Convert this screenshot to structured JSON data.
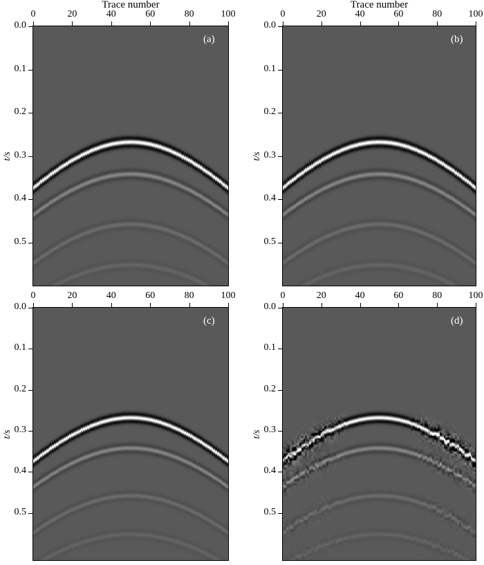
{
  "figure": {
    "background_color": "#ffffff",
    "plot_background_color": "#595959",
    "axis_color": "#000000",
    "panel_label_color": "#ffffff"
  },
  "chart_data": {
    "type": "heatmap",
    "layout": "2x2 grid of grayscale seismic image panels",
    "apex_trace": 50,
    "wavelet_peak_frequency_hz": 42,
    "colormap": {
      "zero_amplitude": "#595959",
      "positive_peak": "#ffffff",
      "negative_trough": "#000000"
    },
    "events": [
      {
        "t0_s": 0.268,
        "moveout_s_at_50_traces": 0.26,
        "amplitude": 1.0
      },
      {
        "t0_s": 0.342,
        "moveout_s_at_50_traces": 0.27,
        "amplitude": 0.27
      },
      {
        "t0_s": 0.458,
        "moveout_s_at_50_traces": 0.3,
        "amplitude": 0.11
      },
      {
        "t0_s": 0.552,
        "moveout_s_at_50_traces": 0.3,
        "amplitude": 0.065
      }
    ],
    "panels": [
      {
        "label": "(a)",
        "xlabel": "Trace number",
        "ylabel": "t/s",
        "x_range": [
          0,
          100
        ],
        "y_max": 0.6,
        "x_tick_values": [
          0,
          20,
          40,
          60,
          80,
          100
        ],
        "x_tick_labels": [
          "0",
          "20",
          "40",
          "60",
          "80",
          "100"
        ],
        "y_tick_values": [
          0,
          0.1,
          0.2,
          0.3,
          0.4,
          0.5
        ],
        "y_tick_labels": [
          "0.0",
          "0.1",
          "0.2",
          "0.3",
          "0.4",
          "0.5"
        ],
        "noise": 0
      },
      {
        "label": "(b)",
        "xlabel": "Trace number",
        "ylabel": "t/s",
        "x_range": [
          0,
          100
        ],
        "y_max": 0.6,
        "x_tick_values": [
          0,
          20,
          40,
          60,
          80,
          100
        ],
        "x_tick_labels": [
          "0",
          "20",
          "40",
          "60",
          "80",
          "100"
        ],
        "y_tick_values": [
          0,
          0.1,
          0.2,
          0.3,
          0.4,
          0.5
        ],
        "y_tick_labels": [
          "0.0",
          "0.1",
          "0.2",
          "0.3",
          "0.4",
          "0.5"
        ],
        "noise": 0
      },
      {
        "label": "(c)",
        "xlabel": null,
        "ylabel": "t/s",
        "x_range": [
          0,
          100
        ],
        "y_max": 0.615,
        "x_tick_values": [
          0,
          20,
          40,
          60,
          80,
          100
        ],
        "x_tick_labels": [
          "0",
          "20",
          "40",
          "60",
          "80",
          "100"
        ],
        "y_tick_values": [
          0,
          0.1,
          0.2,
          0.3,
          0.4,
          0.5
        ],
        "y_tick_labels": [
          "0.0",
          "0.1",
          "0.2",
          "0.3",
          "0.4",
          "0.5"
        ],
        "noise": 0
      },
      {
        "label": "(d)",
        "xlabel": null,
        "ylabel": "t/s",
        "x_range": [
          0,
          100
        ],
        "y_max": 0.615,
        "x_tick_values": [
          0,
          20,
          40,
          60,
          80,
          100
        ],
        "x_tick_labels": [
          "0",
          "20",
          "40",
          "60",
          "80",
          "100"
        ],
        "y_tick_values": [
          0,
          0.1,
          0.2,
          0.3,
          0.4,
          0.5
        ],
        "y_tick_labels": [
          "0.0",
          "0.1",
          "0.2",
          "0.3",
          "0.4",
          "0.5"
        ],
        "noise": 0.6
      }
    ]
  }
}
